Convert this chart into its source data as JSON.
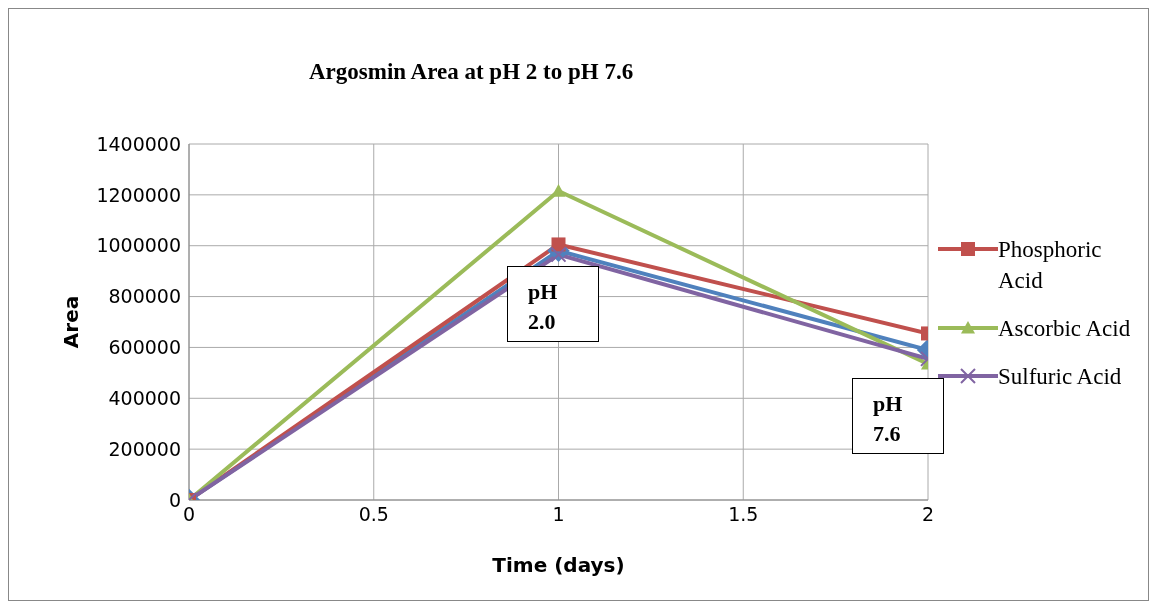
{
  "chart_data": {
    "type": "line",
    "title": "Argosmin Area at pH 2 to pH 7.6",
    "xlabel": "Time (days)",
    "ylabel": "Area",
    "x": [
      0,
      1,
      2
    ],
    "series": [
      {
        "color": "#4f81bd",
        "marker": "diamond",
        "values": [
          0,
          980000,
          590000
        ]
      },
      {
        "name": "Phosphoric Acid",
        "color": "#c0504d",
        "marker": "square",
        "values": [
          0,
          1005000,
          655000
        ]
      },
      {
        "name": "Ascorbic Acid",
        "color": "#9bbb59",
        "marker": "triangle",
        "values": [
          0,
          1215000,
          535000
        ]
      },
      {
        "name": "Sulfuric Acid",
        "color": "#8064a2",
        "marker": "cross",
        "values": [
          0,
          965000,
          555000
        ]
      }
    ],
    "xlim": [
      0,
      2
    ],
    "xticks": [
      0,
      0.5,
      1,
      1.5,
      2
    ],
    "ylim": [
      0,
      1400000
    ],
    "yticks": [
      0,
      200000,
      400000,
      600000,
      800000,
      1000000,
      1200000,
      1400000
    ],
    "grid": true,
    "legend": "right",
    "annotations": [
      "pH 2.0",
      "pH 7.6"
    ]
  }
}
